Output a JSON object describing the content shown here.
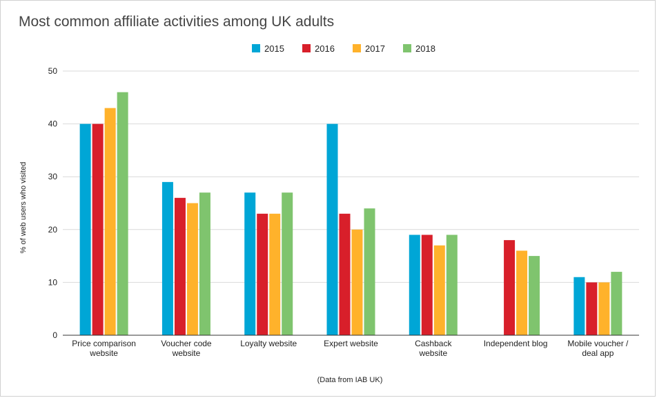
{
  "chart_data": {
    "type": "bar",
    "title": "Most common affiliate activities among UK adults",
    "ylabel": "% of web users who visited",
    "xlabel": "(Data from IAB UK)",
    "ylim": [
      0,
      50
    ],
    "yticks": [
      0,
      10,
      20,
      30,
      40,
      50
    ],
    "grid": true,
    "legend_position": "top-center",
    "categories": [
      [
        "Price comparison",
        "website"
      ],
      [
        "Voucher code",
        "website"
      ],
      [
        "Loyalty website"
      ],
      [
        "Expert website"
      ],
      [
        "Cashback",
        "website"
      ],
      [
        "Independent blog"
      ],
      [
        "Mobile voucher /",
        "deal app"
      ]
    ],
    "series": [
      {
        "name": "2015",
        "color": "#00a6d6",
        "values": [
          40,
          29,
          27,
          40,
          19,
          null,
          11
        ]
      },
      {
        "name": "2016",
        "color": "#d81f2a",
        "values": [
          40,
          26,
          23,
          23,
          19,
          18,
          10
        ]
      },
      {
        "name": "2017",
        "color": "#ffb22b",
        "values": [
          43,
          25,
          23,
          20,
          17,
          16,
          10
        ]
      },
      {
        "name": "2018",
        "color": "#7fc46e",
        "values": [
          46,
          27,
          27,
          24,
          19,
          15,
          12
        ]
      }
    ]
  }
}
